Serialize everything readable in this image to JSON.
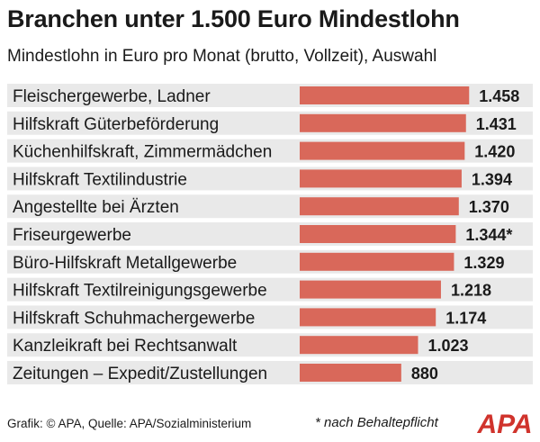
{
  "header": {
    "title": "Branchen unter 1.500 Euro Mindestlohn",
    "subtitle": "Mindestlohn in Euro pro Monat (brutto, Vollzeit), Auswahl"
  },
  "footer": {
    "source": "Grafik: © APA, Quelle: APA/Sozialministerium",
    "note": "* nach Behaltepflicht",
    "logo_text": "APA"
  },
  "colors": {
    "bar": "#d9685a",
    "row_background": "#e9e9e9",
    "logo": "#d0332c"
  },
  "chart_data": {
    "type": "bar",
    "orientation": "horizontal",
    "title": "Branchen unter 1.500 Euro Mindestlohn",
    "subtitle": "Mindestlohn in Euro pro Monat (brutto, Vollzeit), Auswahl",
    "categories": [
      "Fleischergewerbe, Ladner",
      "Hilfskraft Güterbeförderung",
      "Küchenhilfskraft, Zimmermädchen",
      "Hilfskraft Textilindustrie",
      "Angestellte bei Ärzten",
      "Friseurgewerbe",
      "Büro-Hilfskraft Metallgewerbe",
      "Hilfskraft Textilreinigungsgewerbe",
      "Hilfskraft Schuhmachergewerbe",
      "Kanzleikraft bei Rechtsanwalt",
      "Zeitungen – Expedit/Zustellungen"
    ],
    "values": [
      1458,
      1431,
      1420,
      1394,
      1370,
      1344,
      1329,
      1218,
      1174,
      1023,
      880
    ],
    "labels": [
      "1.458",
      "1.431",
      "1.420",
      "1.394",
      "1.370",
      "1.344*",
      "1.329",
      "1.218",
      "1.174",
      "1.023",
      "880"
    ],
    "xlabel": "",
    "ylabel": "",
    "xlim": [
      0,
      1500
    ],
    "grid": false,
    "legend": "none"
  }
}
